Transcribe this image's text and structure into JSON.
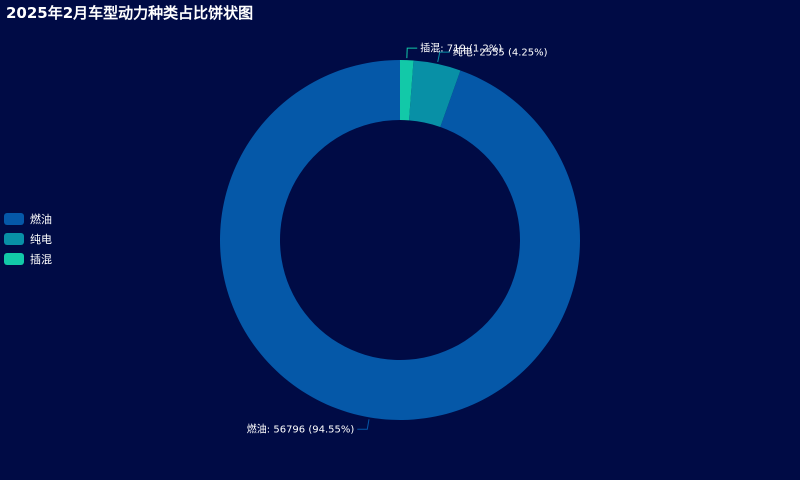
{
  "chart_data": {
    "type": "pie",
    "title": "2025年2月车型动力种类占比饼状图",
    "legend_position": "left",
    "donut": true,
    "slices": [
      {
        "name": "燃油",
        "value": 56796,
        "percent": "94.55%",
        "color": "#0558a8",
        "label": "燃油: 56796 (94.55%)"
      },
      {
        "name": "纯电",
        "value": 2555,
        "percent": "4.25%",
        "color": "#0890a6",
        "label": "纯电: 2555 (4.25%)"
      },
      {
        "name": "插混",
        "value": 719,
        "percent": "1.2%",
        "color": "#12c9a8",
        "label": "插混: 719 (1.2%)"
      }
    ]
  }
}
